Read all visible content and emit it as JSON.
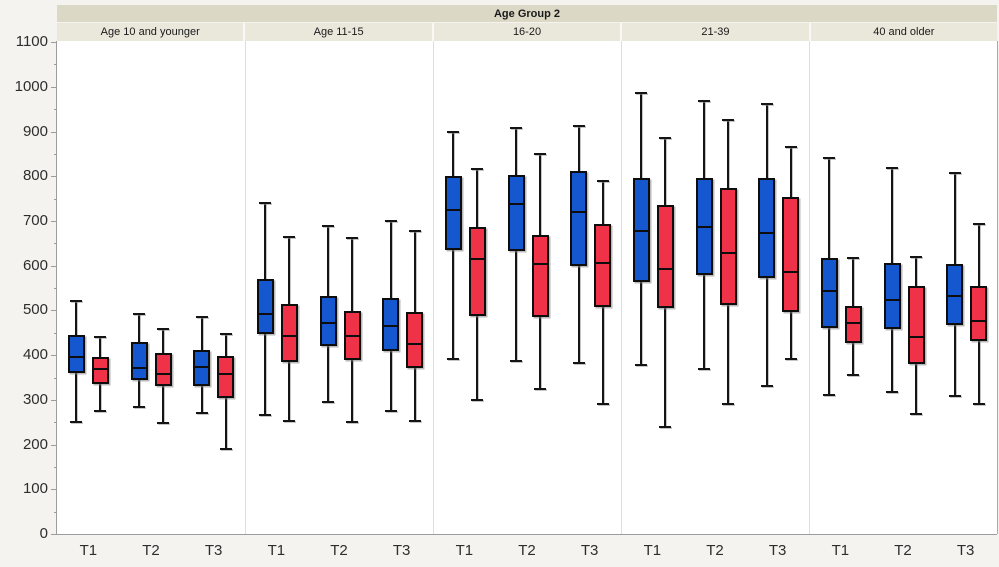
{
  "chart_data": {
    "type": "box",
    "title": "Age Group 2",
    "categories": [
      "T1",
      "T2",
      "T3"
    ],
    "series_names": [
      "blue",
      "red"
    ],
    "series_colors": {
      "blue": "#1457cf",
      "red": "#ef3248"
    },
    "y_axis": {
      "min": 0,
      "max": 1100,
      "major_step": 100,
      "minor_step": 50,
      "tick_labels": [
        "0",
        "100",
        "200",
        "300",
        "400",
        "500",
        "600",
        "700",
        "800",
        "900",
        "1000",
        "1100"
      ]
    },
    "legend": "none",
    "grid": false,
    "panels": [
      {
        "label": "Age 10 and younger",
        "groups": [
          {
            "label": "T1",
            "boxes": [
              {
                "series": "blue",
                "lo": 250,
                "q1": 360,
                "med": 395,
                "q3": 445,
                "hi": 520
              },
              {
                "series": "red",
                "lo": 275,
                "q1": 335,
                "med": 370,
                "q3": 395,
                "hi": 440
              }
            ]
          },
          {
            "label": "T2",
            "boxes": [
              {
                "series": "blue",
                "lo": 283,
                "q1": 345,
                "med": 372,
                "q3": 430,
                "hi": 492
              },
              {
                "series": "red",
                "lo": 248,
                "q1": 330,
                "med": 357,
                "q3": 405,
                "hi": 458
              }
            ]
          },
          {
            "label": "T3",
            "boxes": [
              {
                "series": "blue",
                "lo": 270,
                "q1": 330,
                "med": 373,
                "q3": 412,
                "hi": 485
              },
              {
                "series": "red",
                "lo": 190,
                "q1": 303,
                "med": 358,
                "q3": 397,
                "hi": 448
              }
            ]
          }
        ]
      },
      {
        "label": "Age 11-15",
        "groups": [
          {
            "label": "T1",
            "boxes": [
              {
                "series": "blue",
                "lo": 266,
                "q1": 447,
                "med": 493,
                "q3": 570,
                "hi": 740
              },
              {
                "series": "red",
                "lo": 252,
                "q1": 385,
                "med": 443,
                "q3": 515,
                "hi": 665
              }
            ]
          },
          {
            "label": "T2",
            "boxes": [
              {
                "series": "blue",
                "lo": 295,
                "q1": 420,
                "med": 472,
                "q3": 532,
                "hi": 688
              },
              {
                "series": "red",
                "lo": 250,
                "q1": 390,
                "med": 443,
                "q3": 498,
                "hi": 662
              }
            ]
          },
          {
            "label": "T3",
            "boxes": [
              {
                "series": "blue",
                "lo": 275,
                "q1": 410,
                "med": 466,
                "q3": 528,
                "hi": 700
              },
              {
                "series": "red",
                "lo": 252,
                "q1": 370,
                "med": 426,
                "q3": 497,
                "hi": 678
              }
            ]
          }
        ]
      },
      {
        "label": "16-20",
        "groups": [
          {
            "label": "T1",
            "boxes": [
              {
                "series": "blue",
                "lo": 392,
                "q1": 635,
                "med": 724,
                "q3": 800,
                "hi": 898
              },
              {
                "series": "red",
                "lo": 300,
                "q1": 487,
                "med": 614,
                "q3": 686,
                "hi": 817
              }
            ]
          },
          {
            "label": "T2",
            "boxes": [
              {
                "series": "blue",
                "lo": 388,
                "q1": 633,
                "med": 738,
                "q3": 803,
                "hi": 908
              },
              {
                "series": "red",
                "lo": 325,
                "q1": 485,
                "med": 604,
                "q3": 668,
                "hi": 850
              }
            ]
          },
          {
            "label": "T3",
            "boxes": [
              {
                "series": "blue",
                "lo": 382,
                "q1": 600,
                "med": 721,
                "q3": 812,
                "hi": 912
              },
              {
                "series": "red",
                "lo": 290,
                "q1": 508,
                "med": 607,
                "q3": 693,
                "hi": 790
              }
            ]
          }
        ]
      },
      {
        "label": "21-39",
        "groups": [
          {
            "label": "T1",
            "boxes": [
              {
                "series": "blue",
                "lo": 378,
                "q1": 564,
                "med": 678,
                "q3": 795,
                "hi": 985
              },
              {
                "series": "red",
                "lo": 240,
                "q1": 505,
                "med": 592,
                "q3": 735,
                "hi": 885
              }
            ]
          },
          {
            "label": "T2",
            "boxes": [
              {
                "series": "blue",
                "lo": 368,
                "q1": 580,
                "med": 687,
                "q3": 795,
                "hi": 968
              },
              {
                "series": "red",
                "lo": 290,
                "q1": 512,
                "med": 628,
                "q3": 773,
                "hi": 925
              }
            ]
          },
          {
            "label": "T3",
            "boxes": [
              {
                "series": "blue",
                "lo": 332,
                "q1": 572,
                "med": 674,
                "q3": 795,
                "hi": 962
              },
              {
                "series": "red",
                "lo": 392,
                "q1": 497,
                "med": 585,
                "q3": 753,
                "hi": 865
              }
            ]
          }
        ]
      },
      {
        "label": "40 and older",
        "groups": [
          {
            "label": "T1",
            "boxes": [
              {
                "series": "blue",
                "lo": 310,
                "q1": 460,
                "med": 544,
                "q3": 618,
                "hi": 840
              },
              {
                "series": "red",
                "lo": 355,
                "q1": 428,
                "med": 472,
                "q3": 510,
                "hi": 617
              }
            ]
          },
          {
            "label": "T2",
            "boxes": [
              {
                "series": "blue",
                "lo": 318,
                "q1": 458,
                "med": 523,
                "q3": 605,
                "hi": 818
              },
              {
                "series": "red",
                "lo": 268,
                "q1": 380,
                "med": 441,
                "q3": 555,
                "hi": 620
              }
            ]
          },
          {
            "label": "T3",
            "boxes": [
              {
                "series": "blue",
                "lo": 308,
                "q1": 468,
                "med": 532,
                "q3": 604,
                "hi": 808
              },
              {
                "series": "red",
                "lo": 290,
                "q1": 432,
                "med": 476,
                "q3": 555,
                "hi": 693
              }
            ]
          }
        ]
      }
    ]
  }
}
